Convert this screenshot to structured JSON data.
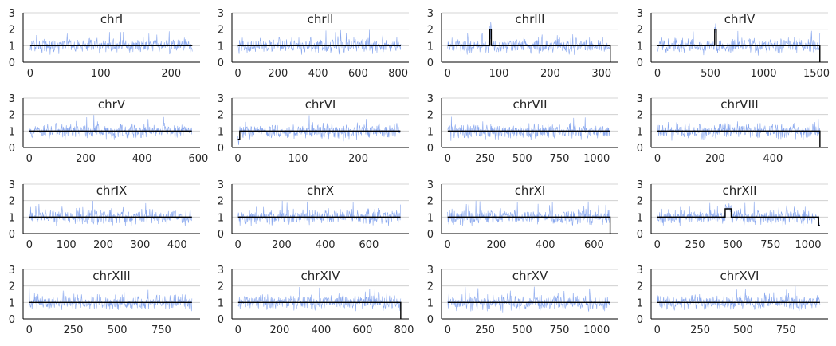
{
  "chart_data": [
    {
      "type": "line",
      "title": "chrI",
      "length": 230,
      "xticks": [
        0,
        100,
        200
      ],
      "xlim": [
        -10,
        241
      ],
      "ylim": [
        0,
        3
      ],
      "yticks": [
        0,
        1,
        2,
        3
      ],
      "grid": "y",
      "series": [
        {
          "values": "coverage",
          "color": "#8aa8ee"
        },
        {
          "values": "copy-number",
          "color": "#000000",
          "segments": [
            [
              0,
              230,
              1
            ]
          ]
        }
      ]
    },
    {
      "type": "line",
      "title": "chrII",
      "length": 813,
      "xticks": [
        0,
        200,
        400,
        600,
        800
      ],
      "xlim": [
        -30,
        853
      ],
      "ylim": [
        0,
        3
      ],
      "yticks": [
        0,
        1,
        2,
        3
      ],
      "grid": "y",
      "series": [
        {
          "values": "coverage",
          "color": "#8aa8ee"
        },
        {
          "values": "copy-number",
          "color": "#000000",
          "segments": [
            [
              0,
              813,
              1
            ]
          ]
        }
      ]
    },
    {
      "type": "line",
      "title": "chrIII",
      "length": 317,
      "xticks": [
        0,
        100,
        200,
        300
      ],
      "xlim": [
        -12,
        333
      ],
      "ylim": [
        0,
        3
      ],
      "yticks": [
        0,
        1,
        2,
        3
      ],
      "grid": "y",
      "series": [
        {
          "values": "coverage",
          "color": "#8aa8ee"
        },
        {
          "values": "copy-number",
          "color": "#000000",
          "segments": [
            [
              0,
              82,
              1
            ],
            [
              82,
              85,
              2
            ],
            [
              85,
              317,
              1
            ]
          ],
          "drop_to_zero_at_end": true
        }
      ]
    },
    {
      "type": "line",
      "title": "chrIV",
      "length": 1532,
      "xticks": [
        0,
        500,
        1000,
        1500
      ],
      "xlim": [
        -60,
        1609
      ],
      "ylim": [
        0,
        3
      ],
      "yticks": [
        0,
        1,
        2,
        3
      ],
      "grid": "y",
      "series": [
        {
          "values": "coverage",
          "color": "#8aa8ee"
        },
        {
          "values": "copy-number",
          "color": "#000000",
          "segments": [
            [
              0,
              540,
              1
            ],
            [
              540,
              555,
              2
            ],
            [
              555,
              1532,
              1
            ]
          ],
          "drop_to_zero_at_end": true
        }
      ]
    },
    {
      "type": "line",
      "title": "chrV",
      "length": 577,
      "xticks": [
        0,
        200,
        400,
        600
      ],
      "xlim": [
        -22,
        606
      ],
      "ylim": [
        0,
        3
      ],
      "yticks": [
        0,
        1,
        2,
        3
      ],
      "grid": "y",
      "series": [
        {
          "values": "coverage",
          "color": "#8aa8ee"
        },
        {
          "values": "copy-number",
          "color": "#000000",
          "segments": [
            [
              0,
              577,
              1
            ]
          ]
        }
      ]
    },
    {
      "type": "line",
      "title": "chrVI",
      "length": 270,
      "xticks": [
        0,
        100,
        200
      ],
      "xlim": [
        -10,
        284
      ],
      "ylim": [
        0,
        3
      ],
      "yticks": [
        0,
        1,
        2,
        3
      ],
      "grid": "y",
      "series": [
        {
          "values": "coverage",
          "color": "#8aa8ee"
        },
        {
          "values": "copy-number",
          "color": "#000000",
          "segments": [
            [
              0,
              3,
              0.5
            ],
            [
              3,
              270,
              1
            ]
          ]
        }
      ]
    },
    {
      "type": "line",
      "title": "chrVII",
      "length": 1091,
      "xticks": [
        0,
        250,
        500,
        750,
        1000
      ],
      "xlim": [
        -42,
        1146
      ],
      "ylim": [
        0,
        3
      ],
      "yticks": [
        0,
        1,
        2,
        3
      ],
      "grid": "y",
      "series": [
        {
          "values": "coverage",
          "color": "#8aa8ee"
        },
        {
          "values": "copy-number",
          "color": "#000000",
          "segments": [
            [
              0,
              1091,
              1
            ]
          ]
        }
      ]
    },
    {
      "type": "line",
      "title": "chrVIII",
      "length": 563,
      "xticks": [
        0,
        200,
        400
      ],
      "xlim": [
        -22,
        591
      ],
      "ylim": [
        0,
        3
      ],
      "yticks": [
        0,
        1,
        2,
        3
      ],
      "grid": "y",
      "series": [
        {
          "values": "coverage",
          "color": "#8aa8ee"
        },
        {
          "values": "copy-number",
          "color": "#000000",
          "segments": [
            [
              0,
              563,
              1
            ]
          ],
          "drop_to_zero_at_end": true
        }
      ]
    },
    {
      "type": "line",
      "title": "chrIX",
      "length": 440,
      "xticks": [
        0,
        100,
        200,
        300,
        400
      ],
      "xlim": [
        -17,
        462
      ],
      "ylim": [
        0,
        3
      ],
      "yticks": [
        0,
        1,
        2,
        3
      ],
      "grid": "y",
      "series": [
        {
          "values": "coverage",
          "color": "#8aa8ee"
        },
        {
          "values": "copy-number",
          "color": "#000000",
          "segments": [
            [
              0,
              440,
              1
            ]
          ]
        }
      ]
    },
    {
      "type": "line",
      "title": "chrX",
      "length": 745,
      "xticks": [
        0,
        200,
        400,
        600
      ],
      "xlim": [
        -28,
        783
      ],
      "ylim": [
        0,
        3
      ],
      "yticks": [
        0,
        1,
        2,
        3
      ],
      "grid": "y",
      "series": [
        {
          "values": "coverage",
          "color": "#8aa8ee"
        },
        {
          "values": "copy-number",
          "color": "#000000",
          "segments": [
            [
              0,
              745,
              1
            ]
          ]
        }
      ]
    },
    {
      "type": "line",
      "title": "chrXI",
      "length": 666,
      "xticks": [
        0,
        200,
        400,
        600
      ],
      "xlim": [
        -25,
        700
      ],
      "ylim": [
        0,
        3
      ],
      "yticks": [
        0,
        1,
        2,
        3
      ],
      "grid": "y",
      "series": [
        {
          "values": "coverage",
          "color": "#8aa8ee"
        },
        {
          "values": "copy-number",
          "color": "#000000",
          "segments": [
            [
              0,
              666,
              1
            ]
          ],
          "drop_to_zero_at_end": true
        }
      ]
    },
    {
      "type": "line",
      "title": "chrXII",
      "length": 1078,
      "xticks": [
        0,
        250,
        500,
        750,
        1000
      ],
      "xlim": [
        -41,
        1132
      ],
      "ylim": [
        0,
        3
      ],
      "yticks": [
        0,
        1,
        2,
        3
      ],
      "grid": "y",
      "series": [
        {
          "values": "coverage",
          "color": "#8aa8ee"
        },
        {
          "values": "copy-number",
          "color": "#000000",
          "segments": [
            [
              0,
              450,
              1
            ],
            [
              450,
              490,
              1.5
            ],
            [
              490,
              1070,
              1
            ],
            [
              1070,
              1078,
              0.5
            ]
          ]
        }
      ]
    },
    {
      "type": "line",
      "title": "chrXIII",
      "length": 924,
      "xticks": [
        0,
        250,
        500,
        750
      ],
      "xlim": [
        -35,
        970
      ],
      "ylim": [
        0,
        3
      ],
      "yticks": [
        0,
        1,
        2,
        3
      ],
      "grid": "y",
      "series": [
        {
          "values": "coverage",
          "color": "#8aa8ee"
        },
        {
          "values": "copy-number",
          "color": "#000000",
          "segments": [
            [
              0,
              924,
              1
            ]
          ]
        }
      ]
    },
    {
      "type": "line",
      "title": "chrXIV",
      "length": 784,
      "xticks": [
        0,
        200,
        400,
        600,
        800
      ],
      "xlim": [
        -30,
        823
      ],
      "ylim": [
        0,
        3
      ],
      "yticks": [
        0,
        1,
        2,
        3
      ],
      "grid": "y",
      "series": [
        {
          "values": "coverage",
          "color": "#8aa8ee"
        },
        {
          "values": "copy-number",
          "color": "#000000",
          "segments": [
            [
              0,
              784,
              1
            ]
          ],
          "drop_to_zero_at_end": true
        }
      ]
    },
    {
      "type": "line",
      "title": "chrXV",
      "length": 1091,
      "xticks": [
        0,
        250,
        500,
        750,
        1000
      ],
      "xlim": [
        -42,
        1146
      ],
      "ylim": [
        0,
        3
      ],
      "yticks": [
        0,
        1,
        2,
        3
      ],
      "grid": "y",
      "series": [
        {
          "values": "coverage",
          "color": "#8aa8ee"
        },
        {
          "values": "copy-number",
          "color": "#000000",
          "segments": [
            [
              0,
              1091,
              1
            ]
          ]
        }
      ]
    },
    {
      "type": "line",
      "title": "chrXVI",
      "length": 948,
      "xticks": [
        0,
        250,
        500,
        750
      ],
      "xlim": [
        -36,
        995
      ],
      "ylim": [
        0,
        3
      ],
      "yticks": [
        0,
        1,
        2,
        3
      ],
      "grid": "y",
      "series": [
        {
          "values": "coverage",
          "color": "#8aa8ee"
        },
        {
          "values": "copy-number",
          "color": "#000000",
          "segments": [
            [
              0,
              948,
              1
            ]
          ]
        }
      ]
    }
  ]
}
